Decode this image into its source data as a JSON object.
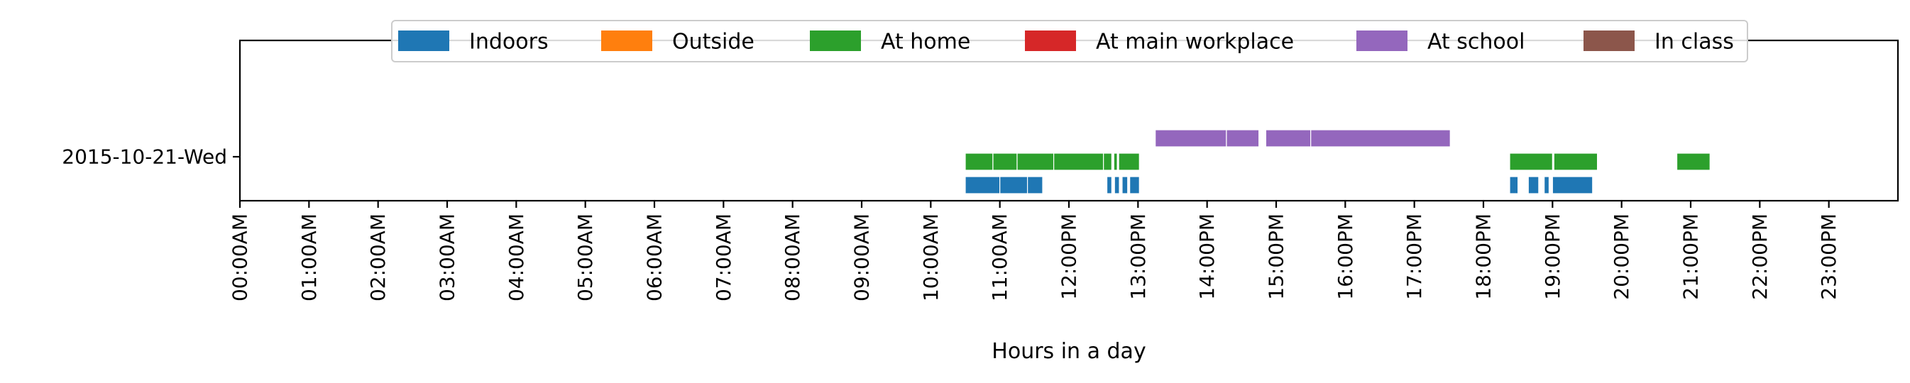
{
  "chart_data": {
    "type": "bar",
    "orientation": "horizontal-timeline",
    "title": "",
    "xlabel": "Hours in a day",
    "ylabel": "",
    "xlim": [
      0,
      24
    ],
    "x_ticks": [
      {
        "value": 0,
        "label": "00:00AM"
      },
      {
        "value": 1,
        "label": "01:00AM"
      },
      {
        "value": 2,
        "label": "02:00AM"
      },
      {
        "value": 3,
        "label": "03:00AM"
      },
      {
        "value": 4,
        "label": "04:00AM"
      },
      {
        "value": 5,
        "label": "05:00AM"
      },
      {
        "value": 6,
        "label": "06:00AM"
      },
      {
        "value": 7,
        "label": "07:00AM"
      },
      {
        "value": 8,
        "label": "08:00AM"
      },
      {
        "value": 9,
        "label": "09:00AM"
      },
      {
        "value": 10,
        "label": "10:00AM"
      },
      {
        "value": 11,
        "label": "11:00AM"
      },
      {
        "value": 12,
        "label": "12:00PM"
      },
      {
        "value": 13,
        "label": "13:00PM"
      },
      {
        "value": 14,
        "label": "14:00PM"
      },
      {
        "value": 15,
        "label": "15:00PM"
      },
      {
        "value": 16,
        "label": "16:00PM"
      },
      {
        "value": 17,
        "label": "17:00PM"
      },
      {
        "value": 18,
        "label": "18:00PM"
      },
      {
        "value": 19,
        "label": "19:00PM"
      },
      {
        "value": 20,
        "label": "20:00PM"
      },
      {
        "value": 21,
        "label": "21:00PM"
      },
      {
        "value": 22,
        "label": "22:00PM"
      },
      {
        "value": 23,
        "label": "23:00PM"
      }
    ],
    "y_ticks": [
      "2015-10-21-Wed"
    ],
    "legend_position": "top-center",
    "grid": false,
    "series": [
      {
        "name": "Indoors",
        "color": "#1f77b4",
        "segments": [
          [
            10.5,
            11.0
          ],
          [
            11.0,
            11.4
          ],
          [
            11.4,
            11.62
          ],
          [
            12.55,
            12.62
          ],
          [
            12.66,
            12.73
          ],
          [
            12.77,
            12.85
          ],
          [
            12.88,
            13.02
          ],
          [
            18.38,
            18.5
          ],
          [
            18.65,
            18.8
          ],
          [
            18.88,
            18.95
          ],
          [
            19.0,
            19.58
          ]
        ]
      },
      {
        "name": "Outside",
        "color": "#ff7f0e",
        "segments": []
      },
      {
        "name": "At home",
        "color": "#2ca02c",
        "segments": [
          [
            10.5,
            10.9
          ],
          [
            10.9,
            11.25
          ],
          [
            11.25,
            11.78
          ],
          [
            11.78,
            12.5
          ],
          [
            12.5,
            12.62
          ],
          [
            12.65,
            12.7
          ],
          [
            12.72,
            13.02
          ],
          [
            18.38,
            19.0
          ],
          [
            19.02,
            19.65
          ],
          [
            20.8,
            21.28
          ]
        ]
      },
      {
        "name": "At main workplace",
        "color": "#d62728",
        "segments": []
      },
      {
        "name": "At school",
        "color": "#9467bd",
        "segments": [
          [
            13.25,
            14.28
          ],
          [
            14.28,
            14.75
          ],
          [
            14.85,
            15.5
          ],
          [
            15.5,
            17.52
          ]
        ]
      },
      {
        "name": "In class",
        "color": "#8c564b",
        "segments": []
      }
    ]
  }
}
